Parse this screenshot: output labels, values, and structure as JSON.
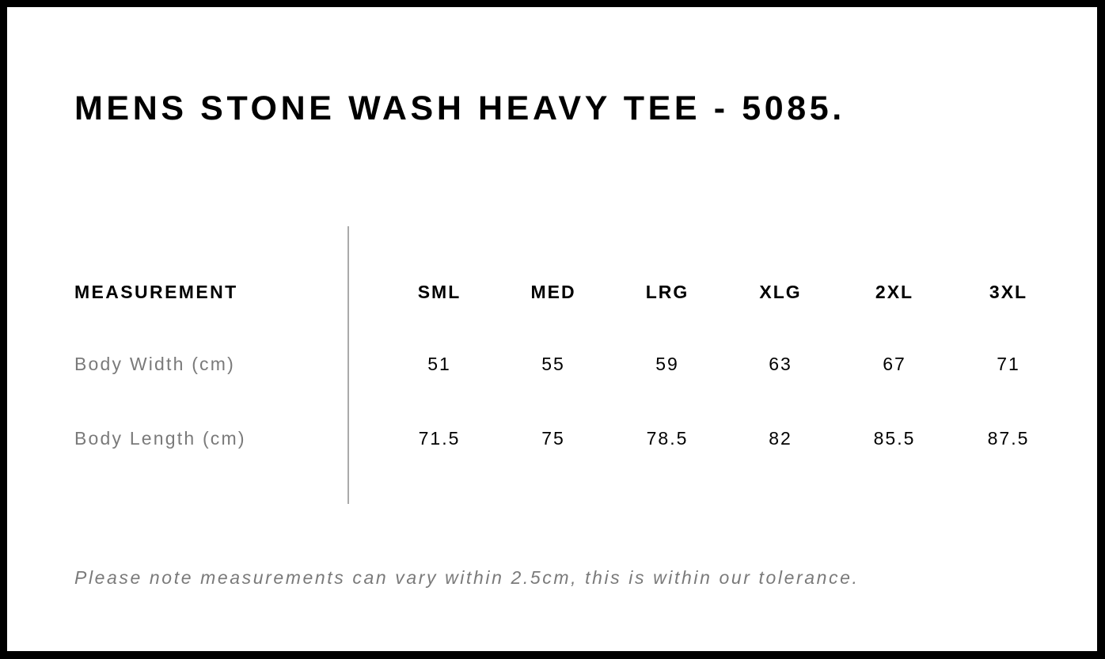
{
  "title": "MENS STONE WASH HEAVY TEE - 5085.",
  "table": {
    "header_label": "MEASUREMENT",
    "sizes": [
      "SML",
      "MED",
      "LRG",
      "XLG",
      "2XL",
      "3XL"
    ],
    "rows": [
      {
        "label": "Body Width (cm)",
        "values": [
          "51",
          "55",
          "59",
          "63",
          "67",
          "71"
        ]
      },
      {
        "label": "Body Length (cm)",
        "values": [
          "71.5",
          "75",
          "78.5",
          "82",
          "85.5",
          "87.5"
        ]
      }
    ]
  },
  "note": "Please note measurements can vary within 2.5cm, this is within our tolerance."
}
